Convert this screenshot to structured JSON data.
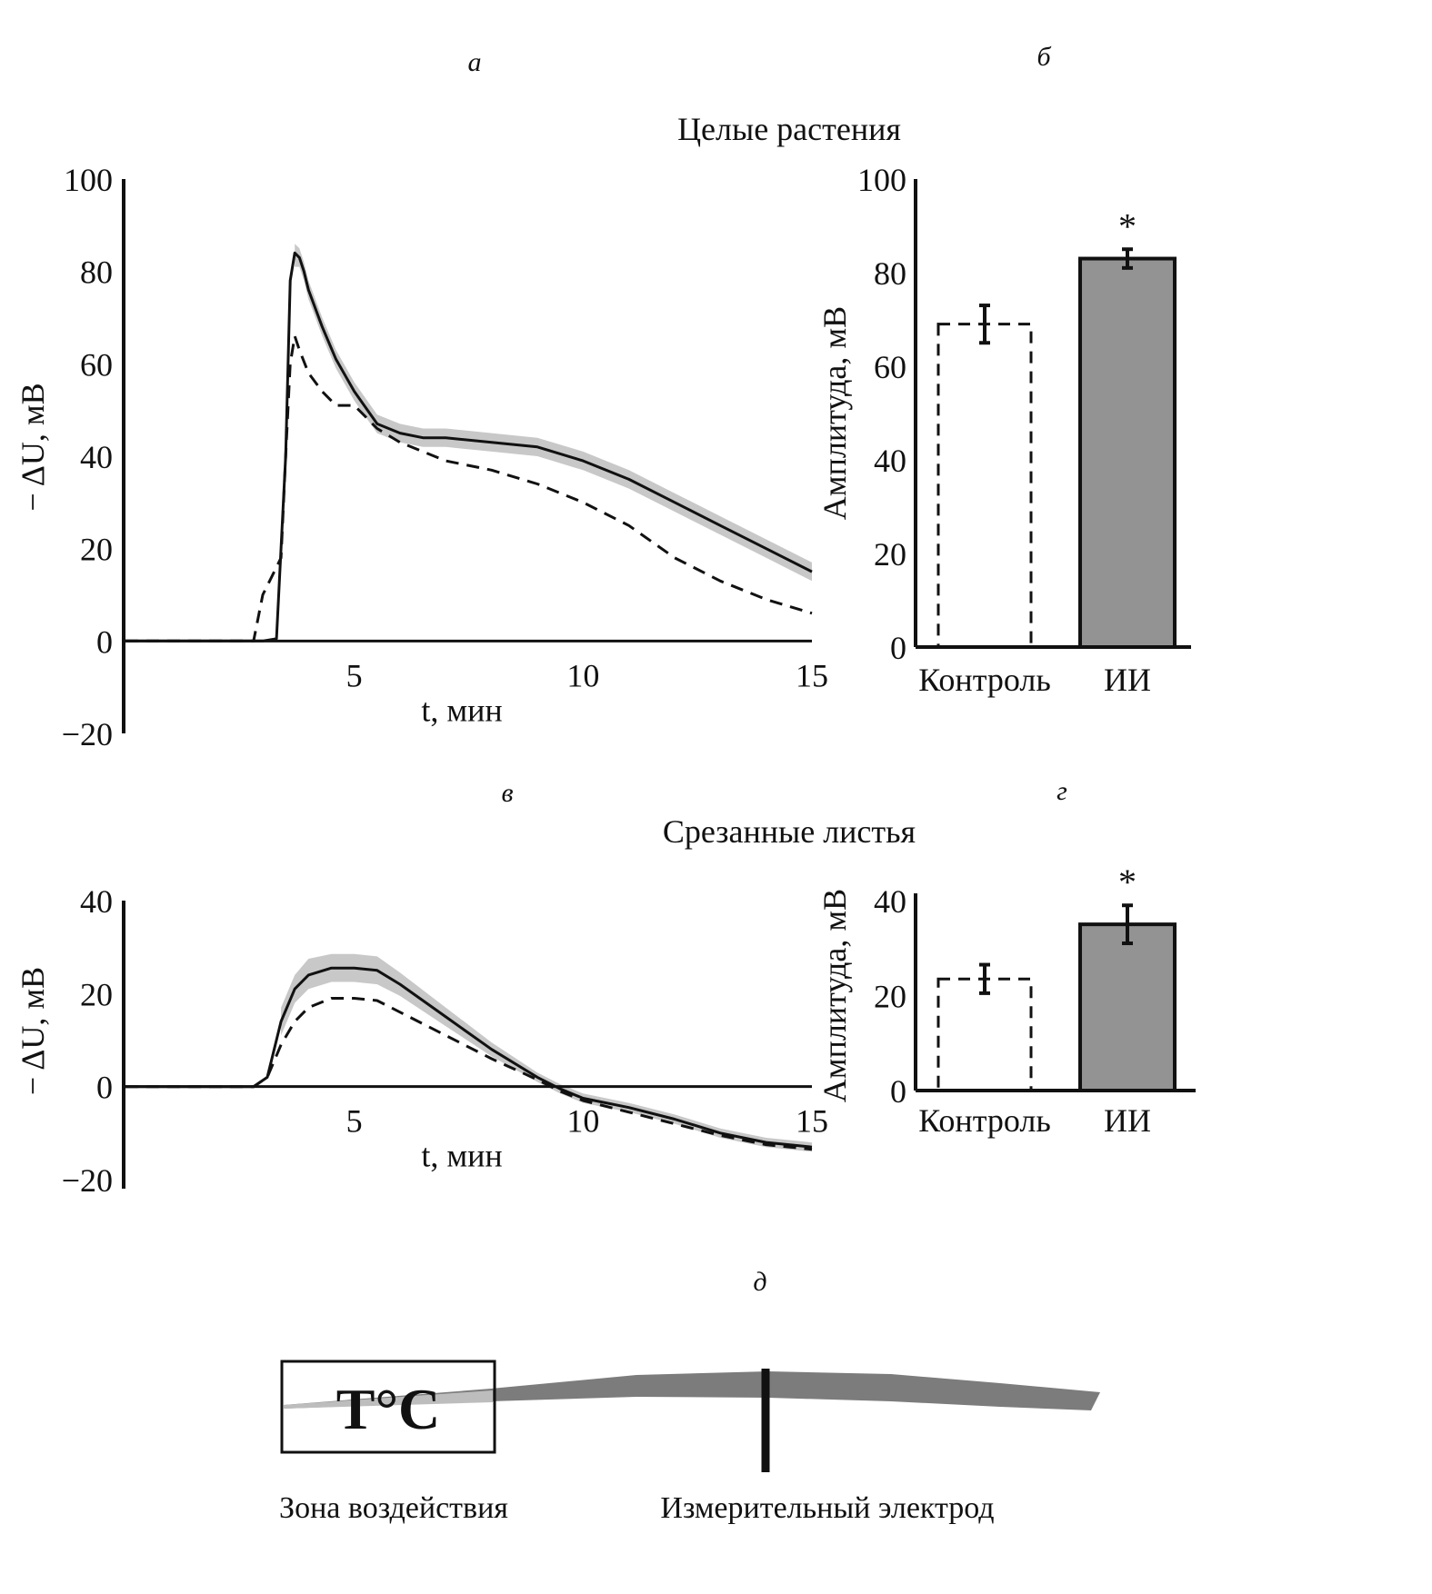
{
  "panels": {
    "a": "а",
    "b": "б",
    "v": "в",
    "g": "г",
    "d": "д"
  },
  "titles": {
    "top": "Целые растения",
    "bottom": "Срезанные листья"
  },
  "chart_data": [
    {
      "id": "a",
      "type": "line",
      "title": "",
      "xlabel": "t, мин",
      "ylabel": "− ΔU, мВ",
      "xlim": [
        0,
        15
      ],
      "ylim": [
        -20,
        100
      ],
      "xticks": [
        "5",
        "10",
        "15"
      ],
      "yticks": [
        "100",
        "80",
        "60",
        "40",
        "20",
        "0",
        "−20"
      ],
      "series": [
        {
          "style": "solid",
          "x": [
            0,
            1,
            2,
            3,
            3.3,
            3.5,
            3.6,
            3.7,
            3.8,
            3.9,
            4.0,
            4.3,
            4.6,
            5.0,
            5.5,
            6.0,
            6.5,
            7.0,
            8.0,
            9.0,
            10.0,
            11.0,
            12.0,
            13.0,
            14.0,
            15.0
          ],
          "y": [
            0,
            0,
            0,
            0,
            0.5,
            40,
            78,
            84,
            83,
            80,
            76,
            68,
            61,
            54,
            47,
            45,
            44,
            44,
            43,
            42,
            39,
            35,
            30,
            25,
            20,
            15
          ]
        },
        {
          "style": "band",
          "x": [
            3.7,
            3.8,
            3.9,
            4.0,
            4.3,
            4.6,
            5.0,
            5.5,
            6.0,
            6.5,
            7.0,
            8.0,
            9.0,
            10.0,
            11.0,
            12.0,
            13.0,
            14.0,
            15.0
          ],
          "low": [
            81,
            81,
            78,
            74,
            66,
            59,
            52,
            45,
            43,
            42,
            42,
            41,
            40,
            37,
            33,
            28,
            23,
            18,
            13
          ],
          "high": [
            86,
            85,
            82,
            78,
            70,
            63,
            56,
            49,
            47,
            46,
            46,
            45,
            44,
            41,
            37,
            32,
            27,
            22,
            17
          ]
        },
        {
          "style": "dashed",
          "x": [
            0,
            1,
            2,
            2.8,
            3.0,
            3.2,
            3.3,
            3.4,
            3.5,
            3.6,
            3.7,
            3.8,
            4.0,
            4.3,
            4.6,
            5.0,
            5.5,
            6.0,
            7.0,
            8.0,
            9.0,
            10.0,
            11.0,
            12.0,
            13.0,
            14.0,
            15.0
          ],
          "y": [
            0,
            0,
            0,
            0,
            10,
            14,
            16,
            18,
            40,
            60,
            66,
            63,
            58,
            54,
            51,
            51,
            46,
            43,
            39,
            37,
            34,
            30,
            25,
            18,
            13,
            9,
            6
          ]
        }
      ]
    },
    {
      "id": "b",
      "type": "bar",
      "title": "",
      "ylabel": "Амплитуда, мВ",
      "ylim": [
        0,
        100
      ],
      "yticks": [
        "100",
        "80",
        "60",
        "40",
        "20",
        "0"
      ],
      "categories": [
        "Контроль",
        "ИИ"
      ],
      "values": [
        69,
        83
      ],
      "errors": [
        4,
        2
      ],
      "annotations": [
        "",
        "*"
      ]
    },
    {
      "id": "v",
      "type": "line",
      "title": "",
      "xlabel": "t, мин",
      "ylabel": "− ΔU, мВ",
      "xlim": [
        0,
        15
      ],
      "ylim": [
        -20,
        40
      ],
      "xticks": [
        "5",
        "10",
        "15"
      ],
      "yticks": [
        "40",
        "20",
        "0",
        "−20"
      ],
      "series": [
        {
          "style": "solid",
          "x": [
            0,
            1,
            2,
            2.8,
            3.1,
            3.4,
            3.7,
            4.0,
            4.5,
            5.0,
            5.5,
            6.0,
            7.0,
            8.0,
            9.0,
            9.5,
            10.0,
            11.0,
            12.0,
            13.0,
            14.0,
            15.0
          ],
          "y": [
            0,
            0,
            0,
            0,
            2,
            14,
            21,
            24,
            25.5,
            25.5,
            25,
            22,
            15,
            8,
            2,
            -0.5,
            -2.5,
            -4.5,
            -7,
            -10,
            -12,
            -13
          ]
        },
        {
          "style": "band",
          "x": [
            3.4,
            3.7,
            4.0,
            4.5,
            5.0,
            5.5,
            6.0,
            7.0,
            8.0,
            9.0,
            9.5,
            10.0,
            11.0,
            12.0,
            13.0,
            14.0,
            15.0
          ],
          "low": [
            11,
            18,
            21,
            22.5,
            22.5,
            22,
            19.5,
            13,
            6.5,
            1,
            -1.5,
            -3.5,
            -5.5,
            -8,
            -11,
            -13,
            -14
          ],
          "high": [
            17,
            24,
            27.5,
            28.5,
            28.5,
            28,
            24.5,
            17,
            9.5,
            3,
            0.5,
            -1.5,
            -3.5,
            -6,
            -9,
            -11,
            -12
          ]
        },
        {
          "style": "dashed",
          "x": [
            0,
            1,
            2,
            2.8,
            3.1,
            3.4,
            3.7,
            4.0,
            4.5,
            5.0,
            5.5,
            6.0,
            7.0,
            8.0,
            9.0,
            9.5,
            10.0,
            11.0,
            12.0,
            13.0,
            14.0,
            15.0
          ],
          "y": [
            0,
            0,
            0,
            0,
            2,
            9,
            14,
            17,
            19,
            19,
            18.5,
            16,
            11,
            6,
            1.5,
            -1,
            -3,
            -5.5,
            -8,
            -10.5,
            -12.5,
            -13.5
          ]
        }
      ]
    },
    {
      "id": "g",
      "type": "bar",
      "title": "",
      "ylabel": "Амплитуда, мВ",
      "ylim": [
        0,
        40
      ],
      "yticks": [
        "40",
        "20",
        "0"
      ],
      "categories": [
        "Контроль",
        "ИИ"
      ],
      "values": [
        23.5,
        35
      ],
      "errors": [
        3,
        4
      ],
      "annotations": [
        "",
        "*"
      ]
    }
  ],
  "schematic": {
    "box_label": "T°C",
    "zone_label": "Зона воздействия",
    "electrode_label": "Измерительный электрод"
  },
  "colors": {
    "bar_fill": "#939393",
    "band": "#c8c8c8",
    "leaf": "#7c7c7c",
    "leaf_tip": "#bdbdbd",
    "ink": "#111111"
  }
}
